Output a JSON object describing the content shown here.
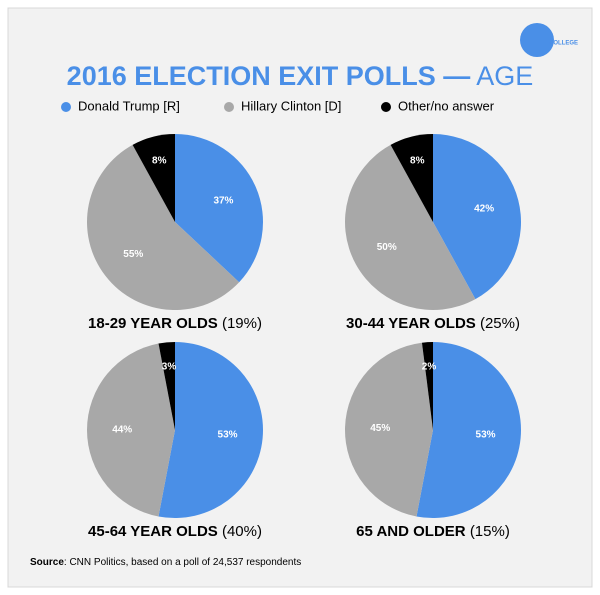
{
  "logo": "COLLEGE",
  "title": {
    "main": "2016 ELECTION EXIT POLLS —",
    "sub": "AGE"
  },
  "source": {
    "label": "Source",
    "text": ": CNN Politics, based on a poll of 24,537 respondents"
  },
  "chart_data": [
    {
      "type": "pie",
      "title": "18-29 YEAR OLDS",
      "subtitle": "(19%)",
      "categories": [
        "Donald Trump [R]",
        "Hillary Clinton [D]",
        "Other/no answer"
      ],
      "colors": [
        "#4a8fe7",
        "#a8a8a8",
        "#000000"
      ],
      "values": [
        37,
        55,
        8
      ],
      "value_labels": [
        "37%",
        "55%",
        "8%"
      ]
    },
    {
      "type": "pie",
      "title": "30-44 YEAR OLDS",
      "subtitle": "(25%)",
      "categories": [
        "Donald Trump [R]",
        "Hillary Clinton [D]",
        "Other/no answer"
      ],
      "colors": [
        "#4a8fe7",
        "#a8a8a8",
        "#000000"
      ],
      "values": [
        42,
        50,
        8
      ],
      "value_labels": [
        "42%",
        "50%",
        "8%"
      ]
    },
    {
      "type": "pie",
      "title": "45-64 YEAR OLDS",
      "subtitle": "(40%)",
      "categories": [
        "Donald Trump [R]",
        "Hillary Clinton [D]",
        "Other/no answer"
      ],
      "colors": [
        "#4a8fe7",
        "#a8a8a8",
        "#000000"
      ],
      "values": [
        53,
        44,
        3
      ],
      "value_labels": [
        "53%",
        "44%",
        "3%"
      ]
    },
    {
      "type": "pie",
      "title": "65 AND OLDER",
      "subtitle": "(15%)",
      "categories": [
        "Donald Trump [R]",
        "Hillary Clinton [D]",
        "Other/no answer"
      ],
      "colors": [
        "#4a8fe7",
        "#a8a8a8",
        "#000000"
      ],
      "values": [
        53,
        45,
        2
      ],
      "value_labels": [
        "53%",
        "45%",
        "2%"
      ]
    }
  ]
}
